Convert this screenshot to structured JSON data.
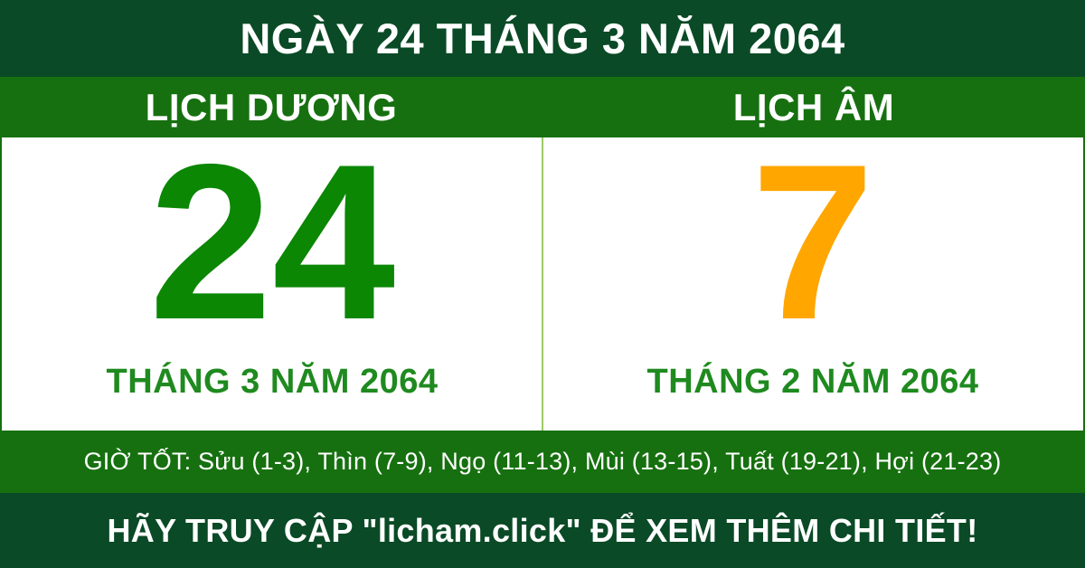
{
  "header": {
    "title": "NGÀY 24 THÁNG 3 NĂM 2064"
  },
  "columns": {
    "solar": {
      "header": "LỊCH DƯƠNG",
      "day": "24",
      "month_label": "THÁNG 3 NĂM 2064"
    },
    "lunar": {
      "header": "LỊCH ÂM",
      "day": "7",
      "month_label": "THÁNG 2 NĂM 2064"
    }
  },
  "good_hours": {
    "text": "GIỜ TỐT: Sửu (1-3), Thìn (7-9), Ngọ (11-13), Mùi (13-15), Tuất (19-21), Hợi (21-23)"
  },
  "footer": {
    "text": "HÃY TRUY CẬP \"licham.click\" ĐỂ XEM THÊM CHI TIẾT!"
  },
  "colors": {
    "dark_green": "#0A4A26",
    "medium_green": "#16700F",
    "solar_day_green": "#0B8703",
    "month_label_green": "#1F8A1F",
    "lunar_day_orange": "#FFA600",
    "divider_light_green": "#9CCC65",
    "text_white": "#FFFFFF"
  }
}
